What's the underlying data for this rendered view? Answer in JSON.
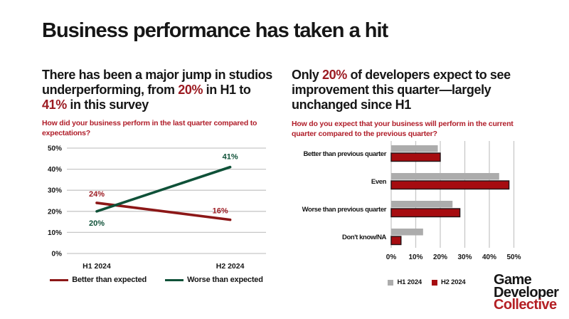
{
  "title": "Business performance has taken a hit",
  "colors": {
    "text_dark": "#161616",
    "accent_red": "#9C1B22",
    "question_red": "#B01E2A",
    "line_red": "#8C1717",
    "line_green": "#0F5138",
    "bar_gray": "#ACACAC",
    "bar_red": "#A60C10",
    "grid": "#C8C8C8",
    "logo_red": "#B42025"
  },
  "left_section": {
    "heading_parts": [
      {
        "text": "There has been a major jump in studios underperforming, from ",
        "accent": false
      },
      {
        "text": "20%",
        "accent": true
      },
      {
        "text": " in H1 to ",
        "accent": false
      },
      {
        "text": "41%",
        "accent": true
      },
      {
        "text": " in this survey",
        "accent": false
      }
    ]
  },
  "right_section": {
    "heading_parts": [
      {
        "text": "Only ",
        "accent": false
      },
      {
        "text": "20%",
        "accent": true
      },
      {
        "text": " of developers expect to see improvement this quarter—largely unchanged since H1",
        "accent": false
      }
    ]
  },
  "chart_data": [
    {
      "id": "last-quarter-performance",
      "type": "line",
      "title": "How did your business perform in the last quarter compared to expectations?",
      "categories": [
        "H1 2024",
        "H2 2024"
      ],
      "series": [
        {
          "name": "Better than expected",
          "values": [
            24,
            16
          ],
          "labels": [
            "24%",
            "16%"
          ],
          "color_key": "line_red",
          "label_color_key": "accent_red"
        },
        {
          "name": "Worse than expected",
          "values": [
            20,
            41
          ],
          "labels": [
            "20%",
            "41%"
          ],
          "color_key": "line_green",
          "label_color_key": "line_green"
        }
      ],
      "ylim": [
        0,
        50
      ],
      "yticks": [
        "0%",
        "10%",
        "20%",
        "30%",
        "40%",
        "50%"
      ],
      "grid": "horizontal",
      "legend_position": "bottom"
    },
    {
      "id": "current-quarter-expectation",
      "type": "bar",
      "orientation": "horizontal",
      "title": "How do you expect that your business will perform in the current quarter compared to the previous quarter?",
      "categories": [
        "Better than previous quarter",
        "Even",
        "Worse than previous quarter",
        "Don't know/NA"
      ],
      "series": [
        {
          "name": "H1 2024",
          "values": [
            19,
            44,
            25,
            13
          ],
          "color_key": "bar_gray"
        },
        {
          "name": "H2 2024",
          "values": [
            20,
            48,
            28,
            4
          ],
          "color_key": "bar_red",
          "stroke": "#231316"
        }
      ],
      "xlim": [
        0,
        50
      ],
      "xticks": [
        "0%",
        "10%",
        "20%",
        "30%",
        "40%",
        "50%"
      ],
      "grid": "vertical",
      "legend_position": "bottom"
    }
  ],
  "logo": {
    "lines": [
      "Game",
      "Developer",
      "Collective"
    ]
  }
}
